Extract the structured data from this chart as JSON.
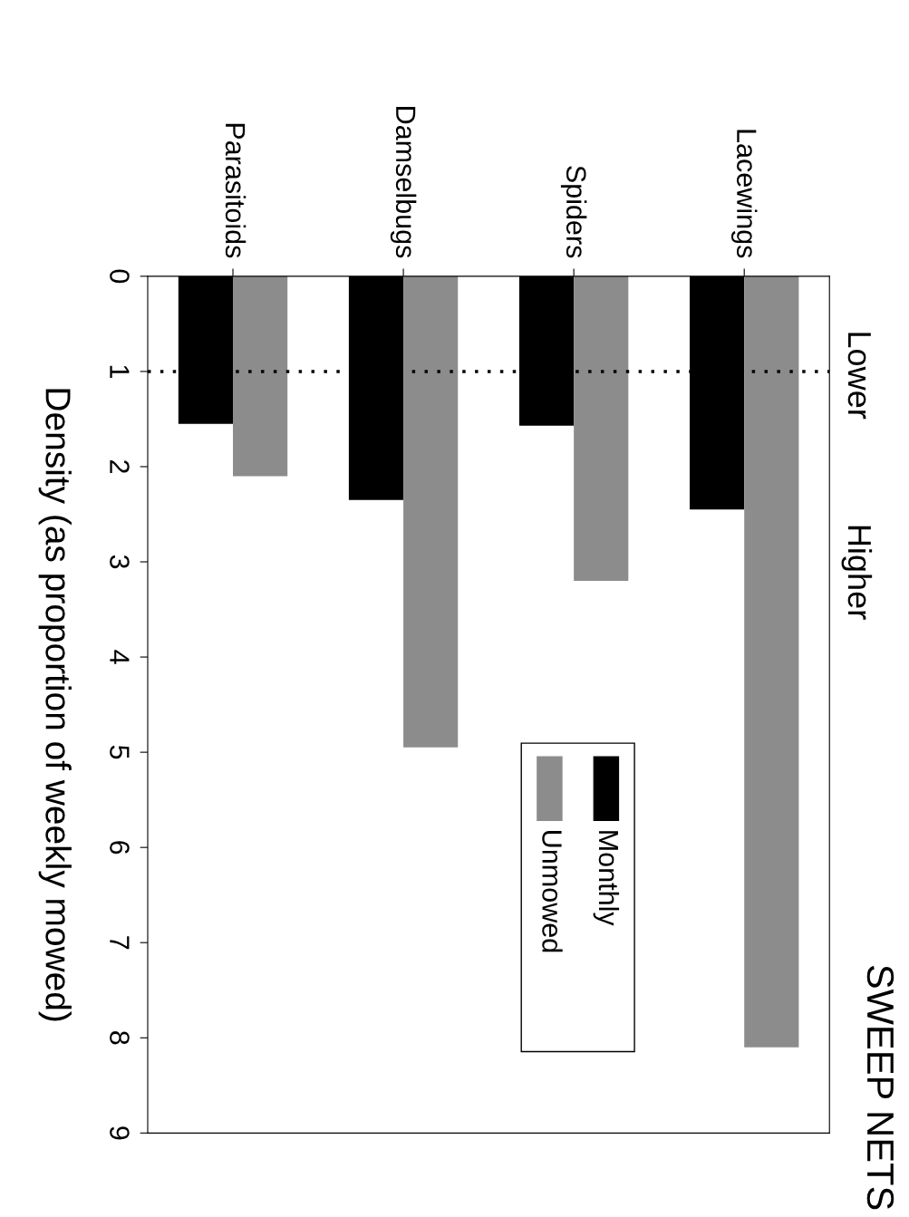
{
  "chart_data": {
    "type": "bar",
    "title": "SWEEP NETS",
    "ylabel": "Density (as proportion of weekly mowed)",
    "categories": [
      "Parasitoids",
      "Damselbugs",
      "Spiders",
      "Lacewings"
    ],
    "series": [
      {
        "name": "Monthly",
        "color": "#000000",
        "values": [
          1.55,
          2.35,
          1.57,
          2.45
        ]
      },
      {
        "name": "Unmowed",
        "color": "#8c8c8c",
        "values": [
          2.1,
          4.95,
          3.2,
          8.1
        ]
      }
    ],
    "ylim": [
      9,
      0
    ],
    "yticks": [
      0,
      1,
      2,
      3,
      4,
      5,
      6,
      7,
      8,
      9
    ],
    "ref_lines": [
      {
        "axis": "y",
        "value": 1,
        "line_style": "dotted",
        "color": "#000000"
      }
    ],
    "annotations": [
      "Lower",
      "Higher"
    ],
    "legend": "bottom right",
    "grid": false
  }
}
